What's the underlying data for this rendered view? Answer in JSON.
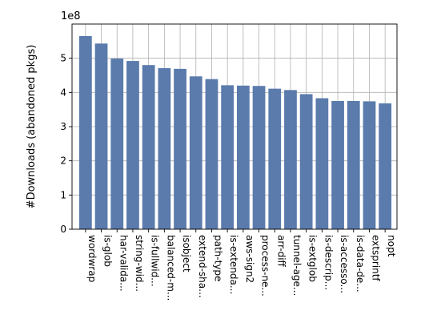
{
  "chart_data": {
    "type": "bar",
    "title": "",
    "xlabel": "",
    "ylabel": "#Downloads (abandoned pkgs)",
    "y_offset_label": "1e8",
    "y_scale": 100000000,
    "ylim": [
      0,
      6.0
    ],
    "yticks": [
      0,
      1,
      2,
      3,
      4,
      5
    ],
    "grid": true,
    "bar_color": "#5a7bab",
    "categories": [
      "wordwrap",
      "is-glob",
      "har-valida...",
      "string-wid...",
      "is-fullwid...",
      "balanced-m...",
      "isobject",
      "extend-sha...",
      "path-type",
      "is-extenda...",
      "aws-sign2",
      "process-ne...",
      "arr-diff",
      "tunnel-age...",
      "is-extglob",
      "is-descrip...",
      "is-accesso...",
      "is-data-de...",
      "extsprintf",
      "nopt"
    ],
    "values": [
      5.65,
      5.43,
      4.99,
      4.92,
      4.8,
      4.71,
      4.69,
      4.47,
      4.39,
      4.21,
      4.2,
      4.19,
      4.11,
      4.07,
      3.95,
      3.83,
      3.75,
      3.75,
      3.74,
      3.68
    ]
  }
}
